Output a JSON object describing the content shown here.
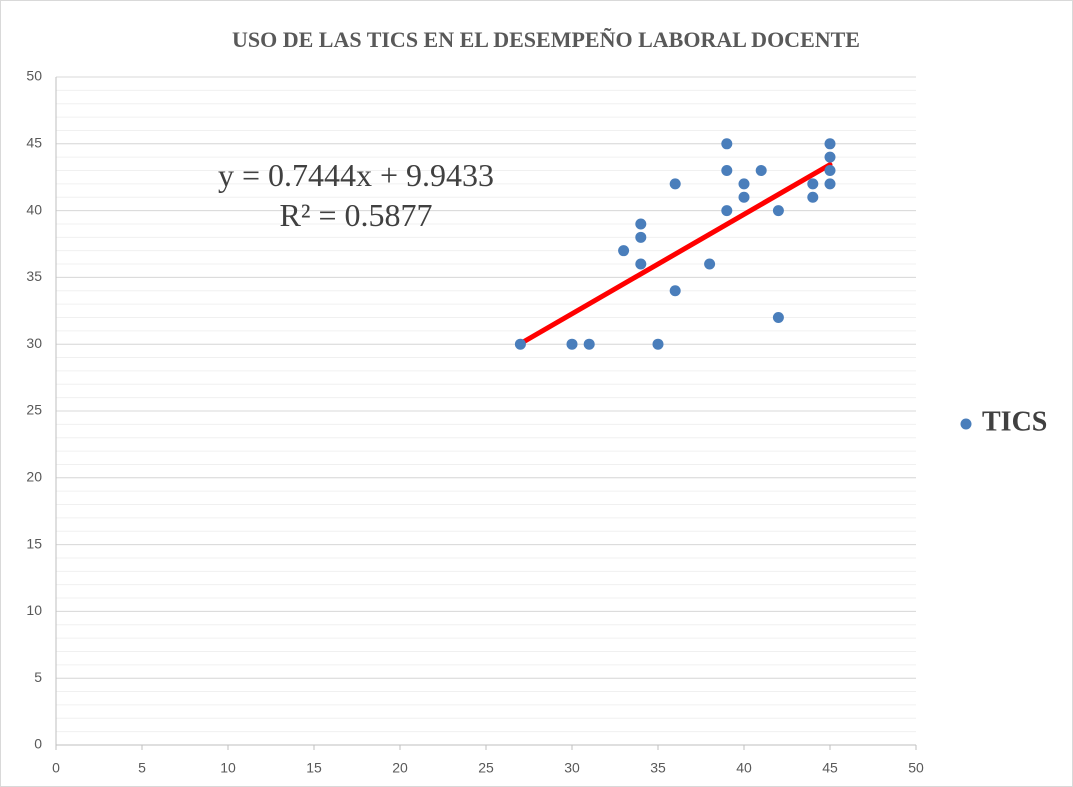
{
  "chart_data": {
    "type": "scatter",
    "title": "USO DE LAS TICS EN EL DESEMPEÑO LABORAL DOCENTE",
    "series": [
      {
        "name": "TICS",
        "color": "#4a7ebb",
        "x": [
          27,
          30,
          31,
          35,
          33,
          34,
          34,
          34,
          36,
          36,
          38,
          39,
          39,
          39,
          40,
          40,
          41,
          42,
          42,
          44,
          44,
          45,
          45,
          45,
          45
        ],
        "values": [
          30,
          30,
          30,
          30,
          37,
          39,
          38,
          36,
          42,
          34,
          36,
          45,
          43,
          40,
          42,
          41,
          43,
          40,
          32,
          42,
          41,
          45,
          44,
          43,
          42
        ]
      }
    ],
    "trendline": {
      "slope": 0.7444,
      "intercept": 9.9433,
      "color": "#ff0000",
      "equation": "y = 0.7444x + 9.9433",
      "r_squared": "R² = 0.5877"
    },
    "xlim": [
      0,
      50
    ],
    "xticks": [
      0,
      5,
      10,
      15,
      20,
      25,
      30,
      35,
      40,
      45,
      50
    ],
    "ylim": [
      0,
      50
    ],
    "yticks": [
      0,
      5,
      10,
      15,
      20,
      25,
      30,
      35,
      40,
      45,
      50
    ],
    "grid": true,
    "minor_grid": true,
    "legend": "right"
  }
}
